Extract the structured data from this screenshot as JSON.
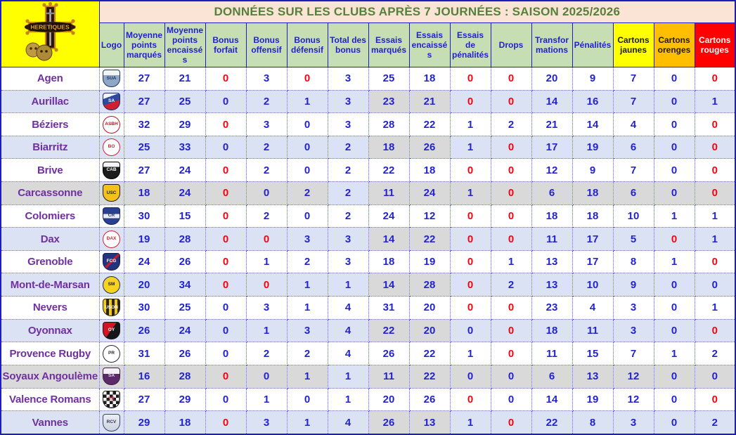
{
  "title": "DONNÉES SUR LES CLUBS APRÈS 7 JOURNÉES : SAISON 2025/2026",
  "corner_crest": {
    "banner_text": "HERETIQUES",
    "description": "occitan-cross-with-skulls-on-yellow"
  },
  "colors": {
    "title_text": "#54823a",
    "title_bg": "#fbe3d6",
    "header_bg": "#c7deb5",
    "header_text": "#2121cf",
    "corner_bg": "#ffff00",
    "value_blue": "#2424cb",
    "value_red": "#f20511",
    "club_name": "#7030a0",
    "band_blue": "#dbe2f3",
    "band_grey": "#d9d9d9",
    "cartons_jaunes_bg": "#ffff00",
    "cartons_orenges_bg": "#ffbf00",
    "cartons_rouges_bg": "#ff0000",
    "grid_border": "#1d1dbe"
  },
  "columns": [
    {
      "label": "Logo",
      "variant": "normal"
    },
    {
      "label": "Moyenne points marqués",
      "variant": "normal"
    },
    {
      "label": "Moyenne points encaissés",
      "variant": "normal"
    },
    {
      "label": "Bonus forfait",
      "variant": "normal"
    },
    {
      "label": "Bonus offensif",
      "variant": "normal"
    },
    {
      "label": "Bonus défensif",
      "variant": "normal"
    },
    {
      "label": "Total des bonus",
      "variant": "normal"
    },
    {
      "label": "Essais marqués",
      "variant": "normal"
    },
    {
      "label": "Essais encaissés",
      "variant": "normal"
    },
    {
      "label": "Essais de pénalités",
      "variant": "normal"
    },
    {
      "label": "Drops",
      "variant": "normal"
    },
    {
      "label": "Transformations",
      "variant": "normal"
    },
    {
      "label": "Pénalités",
      "variant": "normal"
    },
    {
      "label": "Cartons jaunes",
      "variant": "yellow"
    },
    {
      "label": "Cartons orenges",
      "variant": "orange"
    },
    {
      "label": "Cartons rouges",
      "variant": "red"
    }
  ],
  "clubs": [
    {
      "name": "Agen",
      "band": "white",
      "logo": {
        "shape": "shield",
        "bg": "linear-gradient(180deg,#f2f4f8 30%,#8fa6c4 30%)",
        "border": "#1c3461",
        "text": "SUA",
        "text_color": "#1c3461"
      },
      "values": [
        27,
        21,
        0,
        3,
        0,
        3,
        25,
        18,
        0,
        0,
        20,
        9,
        7,
        0,
        0
      ],
      "red": [
        2,
        4,
        8,
        9,
        14
      ]
    },
    {
      "name": "Aurillac",
      "band": "blue",
      "logo": {
        "shape": "shield",
        "bg": "linear-gradient(160deg,#f2f4f8 25%,#2c4a9e 25% 55%,#cf1f30 55%)",
        "border": "#1c2f66",
        "text": "SA",
        "text_color": "#ffffff"
      },
      "values": [
        27,
        25,
        0,
        2,
        1,
        3,
        23,
        21,
        0,
        0,
        14,
        16,
        7,
        0,
        1
      ],
      "red": [
        8,
        9
      ]
    },
    {
      "name": "Béziers",
      "band": "white",
      "logo": {
        "shape": "circle",
        "bg": "#ffffff",
        "border": "#c01025",
        "text": "ASBH",
        "text_color": "#c01025"
      },
      "values": [
        32,
        29,
        0,
        3,
        0,
        3,
        28,
        22,
        1,
        2,
        21,
        14,
        4,
        0,
        0
      ],
      "red": [
        2,
        14
      ]
    },
    {
      "name": "Biarritz",
      "band": "blue",
      "logo": {
        "shape": "circle",
        "bg": "#ffffff",
        "border": "#d02030",
        "text": "BO",
        "text_color": "#d02030"
      },
      "values": [
        25,
        33,
        0,
        2,
        0,
        2,
        18,
        26,
        1,
        0,
        17,
        19,
        6,
        0,
        0
      ],
      "red": [
        9,
        14
      ]
    },
    {
      "name": "Brive",
      "band": "white",
      "logo": {
        "shape": "shield",
        "bg": "linear-gradient(180deg,#f5f5f5 28%,#1c1c1c 28%)",
        "border": "#000000",
        "text": "CAB",
        "text_color": "#ffffff"
      },
      "values": [
        27,
        24,
        0,
        2,
        0,
        2,
        22,
        18,
        0,
        0,
        12,
        9,
        7,
        0,
        0
      ],
      "red": [
        2,
        8,
        9,
        14
      ]
    },
    {
      "name": "Carcassonne",
      "band": "grey",
      "logo": {
        "shape": "shield",
        "bg": "#f2c21a",
        "border": "#1a1a1a",
        "text": "USC",
        "text_color": "#1a1a1a"
      },
      "values": [
        18,
        24,
        0,
        0,
        2,
        2,
        11,
        24,
        1,
        0,
        6,
        18,
        6,
        0,
        0
      ],
      "red": [
        2,
        9,
        14
      ]
    },
    {
      "name": "Colomiers",
      "band": "white",
      "logo": {
        "shape": "shield",
        "bg": "linear-gradient(180deg,#2a3f8f 38%,#e8ecf5 38% 62%,#2a3f8f 62%)",
        "border": "#17255c",
        "text": "CR",
        "text_color": "#17255c"
      },
      "values": [
        30,
        15,
        0,
        2,
        0,
        2,
        24,
        12,
        0,
        0,
        18,
        18,
        10,
        1,
        1
      ],
      "red": [
        2,
        8,
        9
      ]
    },
    {
      "name": "Dax",
      "band": "blue",
      "logo": {
        "shape": "circle",
        "bg": "#ffffff",
        "border": "#d42030",
        "text": "DAX",
        "text_color": "#d42030"
      },
      "values": [
        19,
        28,
        0,
        0,
        3,
        3,
        14,
        22,
        0,
        0,
        11,
        17,
        5,
        0,
        1
      ],
      "red": [
        2,
        3,
        8,
        9,
        13
      ]
    },
    {
      "name": "Grenoble",
      "band": "white",
      "logo": {
        "shape": "shield",
        "bg": "linear-gradient(135deg,#24337f 45%,#c41a2e 45% 55%,#24337f 55%)",
        "border": "#141e4d",
        "text": "FCG",
        "text_color": "#ffffff"
      },
      "values": [
        24,
        26,
        0,
        1,
        2,
        3,
        18,
        19,
        0,
        1,
        13,
        17,
        8,
        1,
        0
      ],
      "red": [
        2,
        8,
        14
      ]
    },
    {
      "name": "Mont-de-Marsan",
      "band": "blue",
      "logo": {
        "shape": "circle",
        "bg": "#f6d31d",
        "border": "#1f2a66",
        "text": "SM",
        "text_color": "#1a1a1a"
      },
      "values": [
        20,
        34,
        0,
        0,
        1,
        1,
        14,
        28,
        0,
        2,
        13,
        10,
        9,
        0,
        0
      ],
      "red": [
        2,
        3,
        8
      ]
    },
    {
      "name": "Nevers",
      "band": "white",
      "logo": {
        "shape": "shield",
        "bg": "repeating-linear-gradient(90deg,#f5c80a 0px,#f5c80a 4px,#26231d 4px,#26231d 8px)",
        "border": "#26231d",
        "text": "USON",
        "text_color": "#ffffff"
      },
      "values": [
        30,
        25,
        0,
        3,
        1,
        4,
        31,
        20,
        0,
        0,
        23,
        4,
        3,
        0,
        1
      ],
      "red": [
        8,
        9
      ]
    },
    {
      "name": "Oyonnax",
      "band": "blue",
      "logo": {
        "shape": "shield",
        "bg": "linear-gradient(125deg,#d41424 48%,#16161a 48%)",
        "border": "#16161a",
        "text": "OY",
        "text_color": "#ffffff"
      },
      "values": [
        26,
        24,
        0,
        1,
        3,
        4,
        22,
        20,
        0,
        0,
        18,
        11,
        3,
        0,
        0
      ],
      "red": [
        9,
        14
      ]
    },
    {
      "name": "Provence Rugby",
      "band": "white",
      "logo": {
        "shape": "circle",
        "bg": "#ffffff",
        "border": "#2a2a2a",
        "text": "PR",
        "text_color": "#2a2a2a"
      },
      "values": [
        31,
        26,
        0,
        2,
        2,
        4,
        26,
        22,
        1,
        0,
        11,
        15,
        7,
        1,
        2
      ],
      "red": [
        9
      ]
    },
    {
      "name": "Soyaux Angoulème",
      "band": "grey",
      "logo": {
        "shape": "shield",
        "bg": "linear-gradient(180deg,#f4f0f6 35%,#5c2a68 35%)",
        "border": "#3c1c46",
        "text": "SA",
        "text_color": "#e8d8ee"
      },
      "values": [
        16,
        28,
        0,
        0,
        1,
        1,
        11,
        22,
        0,
        0,
        6,
        13,
        12,
        0,
        0
      ],
      "red": [
        2
      ]
    },
    {
      "name": "Valence Romans",
      "band": "white",
      "logo": {
        "shape": "shield",
        "bg": "repeating-conic-gradient(#1b1b1b 0% 25%,#f5f5f5 0% 50%)",
        "bg_size": "9px 9px",
        "border": "#1b1b1b",
        "text": "VR",
        "text_color": "#c41a2e"
      },
      "values": [
        27,
        29,
        0,
        1,
        0,
        1,
        20,
        26,
        0,
        0,
        14,
        19,
        12,
        0,
        0
      ],
      "red": [
        8,
        14
      ]
    },
    {
      "name": "Vannes",
      "band": "blue",
      "logo": {
        "shape": "shield",
        "bg": "linear-gradient(180deg,#eceef4 0%,#cdd2e0 100%)",
        "border": "#3a4468",
        "text": "RCV",
        "text_color": "#2a3458"
      },
      "values": [
        29,
        18,
        0,
        3,
        1,
        4,
        26,
        13,
        1,
        0,
        22,
        8,
        3,
        0,
        2
      ],
      "red": [
        2,
        9
      ]
    }
  ]
}
